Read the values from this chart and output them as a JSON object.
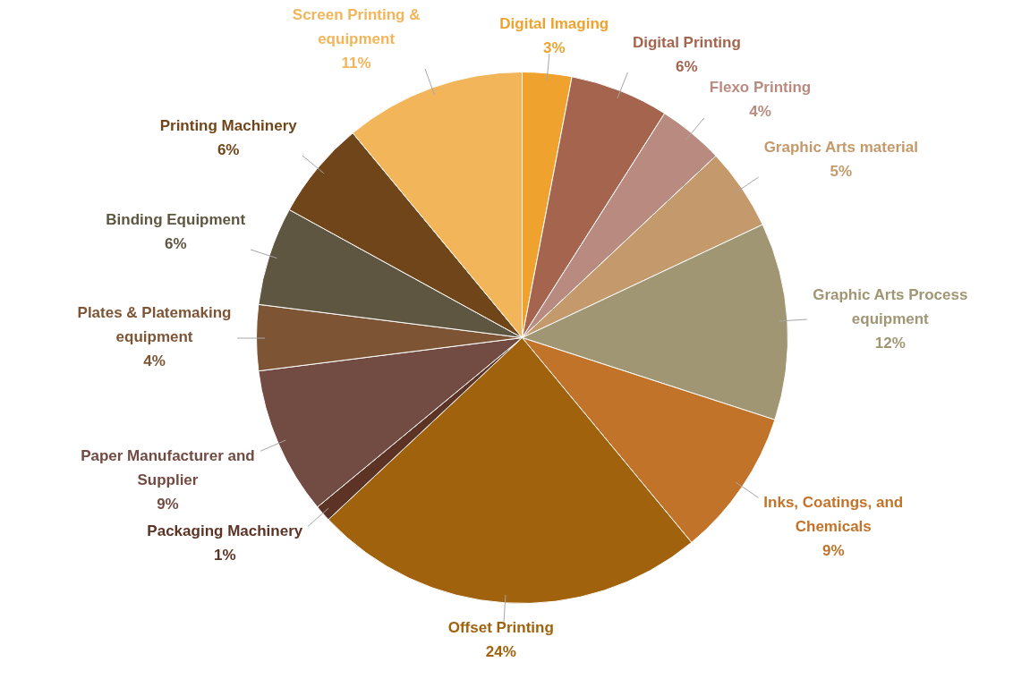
{
  "chart_data": {
    "type": "pie",
    "categories": [
      "Digital Imaging",
      "Digital Printing",
      "Flexo Printing",
      "Graphic Arts material",
      "Graphic Arts Process equipment",
      "Inks, Coatings, and Chemicals",
      "Offset Printing",
      "Packaging Machinery",
      "Paper Manufacturer and Supplier",
      "Plates & Platemaking equipment",
      "Binding Equipment",
      "Printing Machinery",
      "Screen Printing & equipment"
    ],
    "values": [
      3,
      6,
      4,
      5,
      12,
      9,
      24,
      1,
      9,
      4,
      6,
      6,
      11
    ],
    "colors": [
      "#f0a22e",
      "#a5644e",
      "#b98b80",
      "#c49a6c",
      "#a09673",
      "#c2732a",
      "#a0620c",
      "#5c3324",
      "#724b42",
      "#7d5535",
      "#5e5640",
      "#70451a",
      "#f2b55a"
    ],
    "value_labels": [
      "3%",
      "6%",
      "4%",
      "5%",
      "12%",
      "9%",
      "24%",
      "1%",
      "9%",
      "4%",
      "6%",
      "6%",
      "11%"
    ],
    "legend": false
  }
}
